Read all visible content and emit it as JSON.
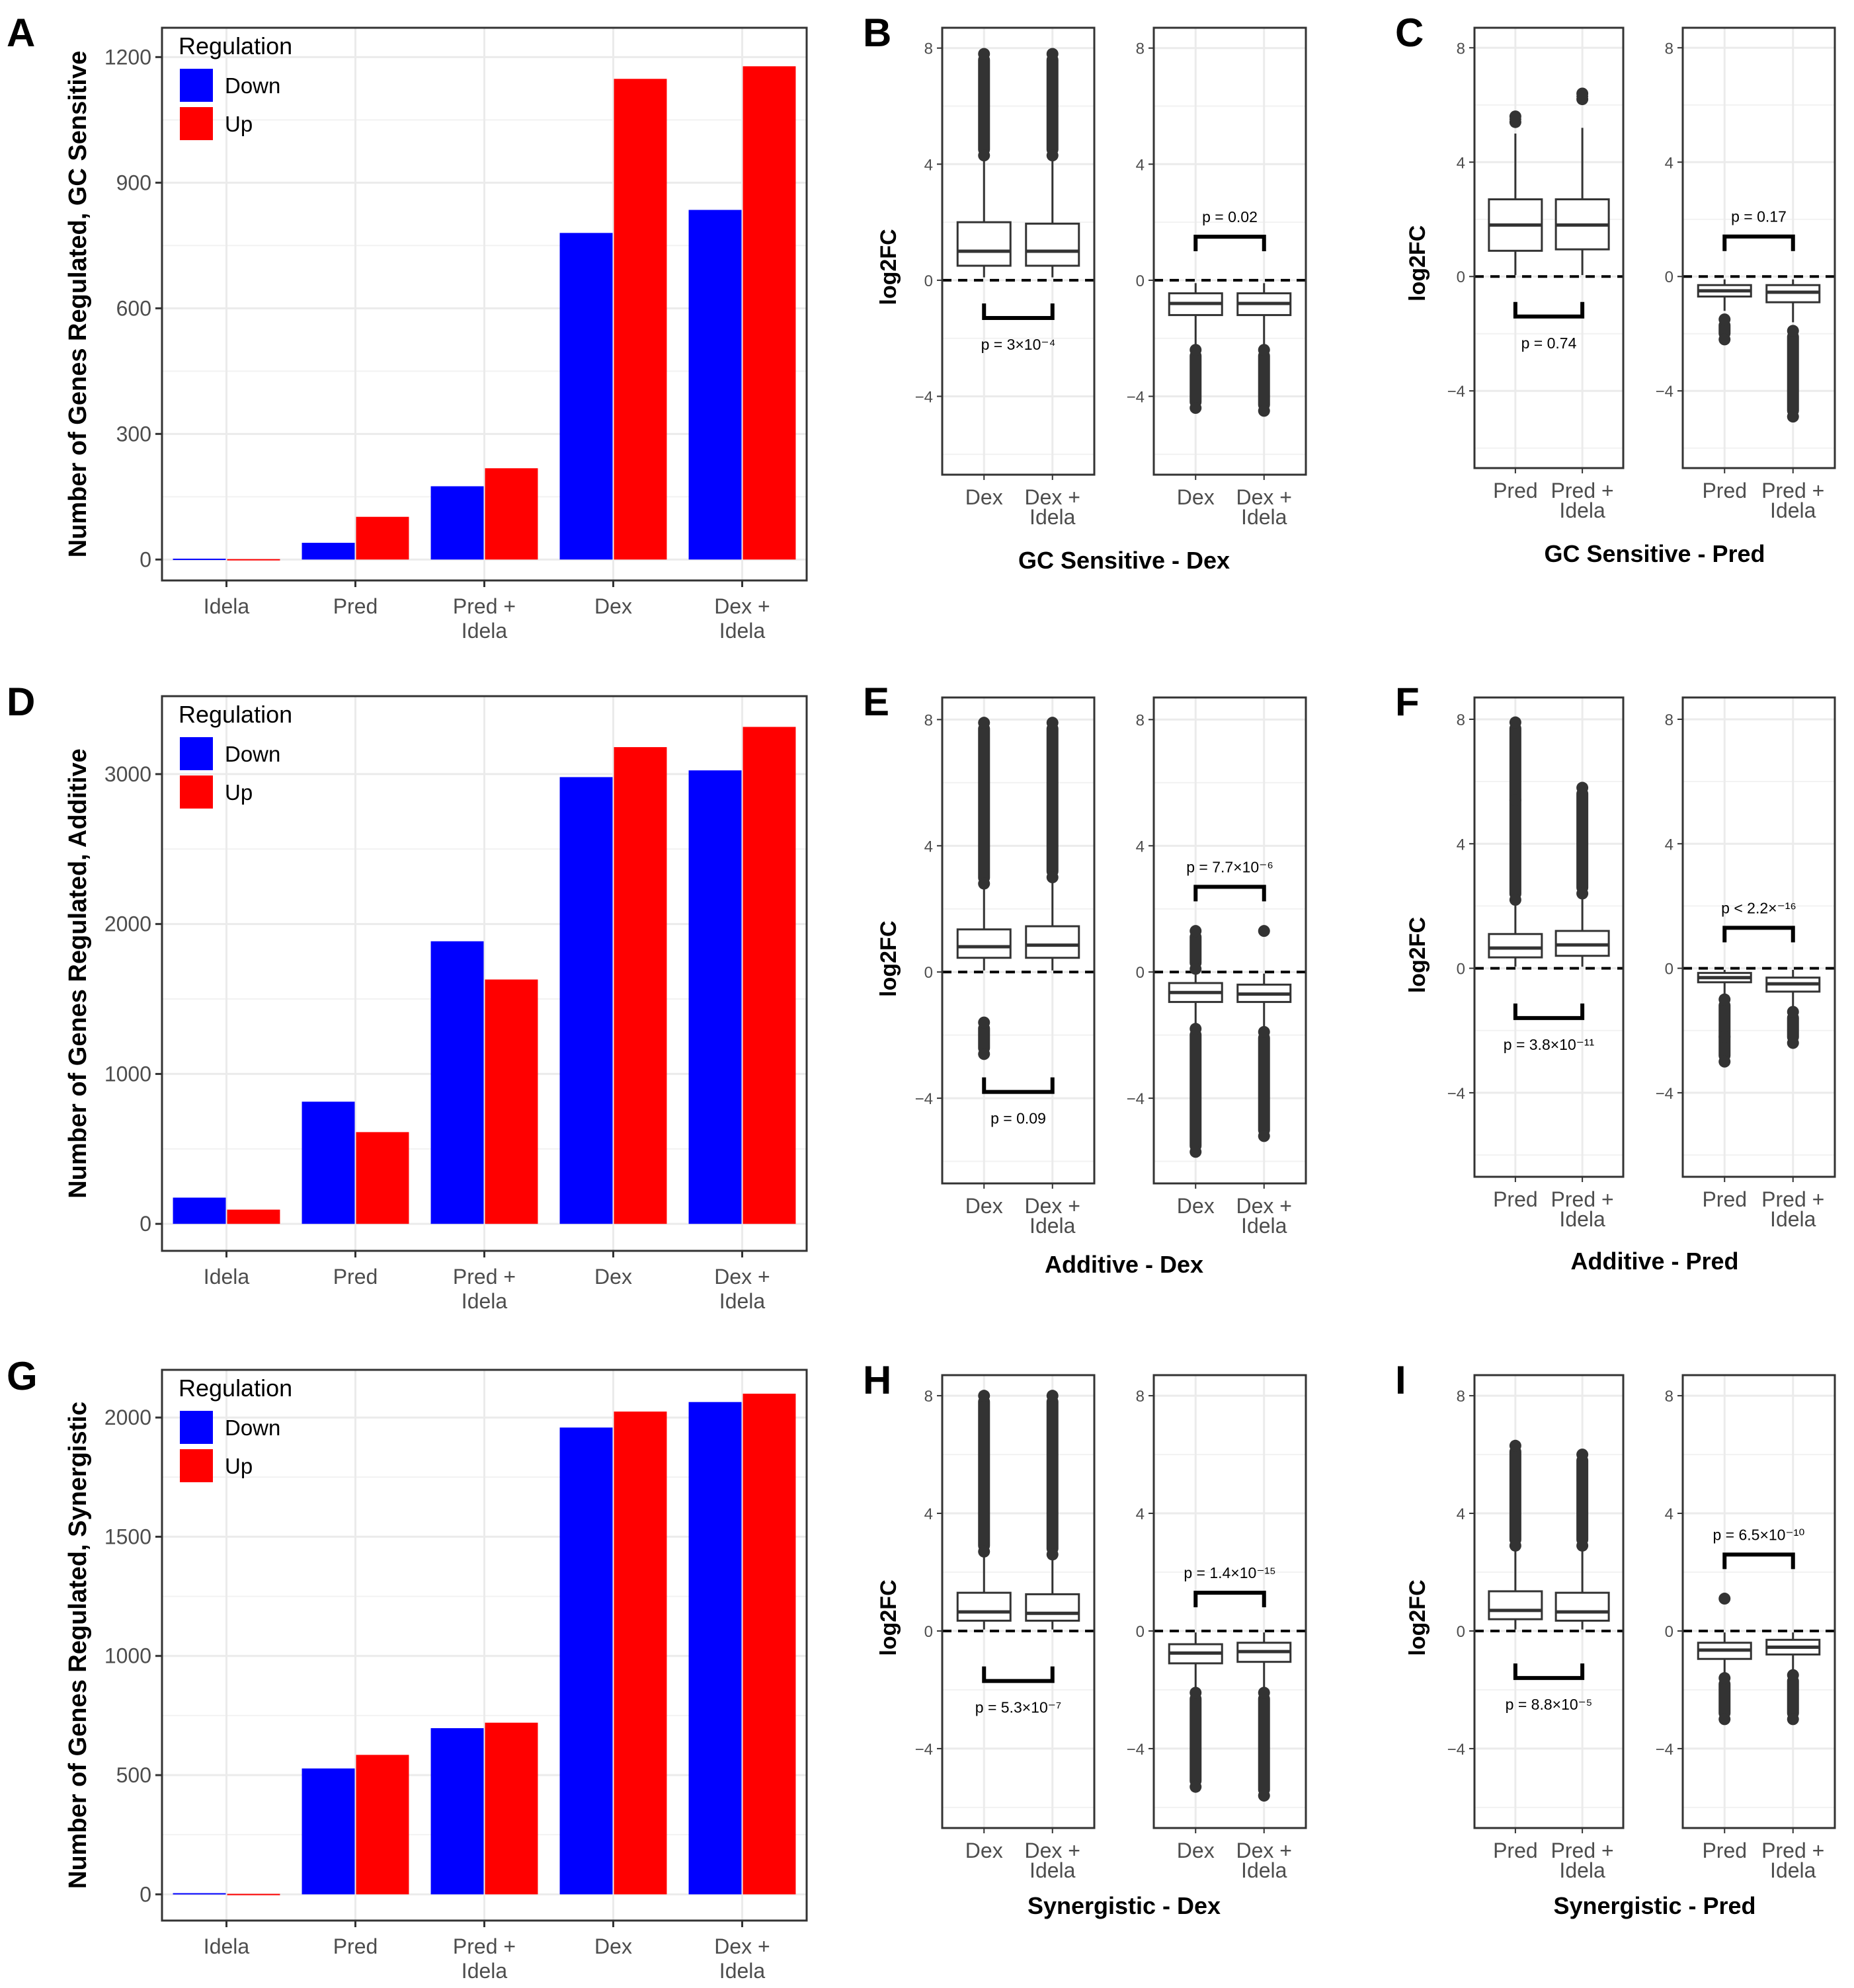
{
  "panel_letters": [
    "A",
    "B",
    "C",
    "D",
    "E",
    "F",
    "G",
    "H",
    "I"
  ],
  "colors": {
    "down": "#0000FF",
    "up": "#FF0000",
    "box_fill": "#FFFFFF",
    "outline": "#333333",
    "grid": "#EBEBEB"
  },
  "chart_data": [
    {
      "panel": "A",
      "type": "bar",
      "ylabel": "Number of Genes Regulated, GC Sensitive",
      "xlabel": "",
      "categories": [
        "Idela",
        "Pred",
        "Pred +\nIdela",
        "Dex",
        "Dex +\nIdela"
      ],
      "series": [
        {
          "name": "Down",
          "values": [
            2,
            40,
            175,
            780,
            835
          ]
        },
        {
          "name": "Up",
          "values": [
            1,
            102,
            218,
            1148,
            1178
          ]
        }
      ],
      "ylim": [
        -50,
        1270
      ],
      "yticks": [
        0,
        300,
        600,
        900,
        1200
      ],
      "legend": {
        "title": "Regulation",
        "entries": [
          "Down",
          "Up"
        ],
        "position": "top-left"
      },
      "grid": true
    },
    {
      "panel": "D",
      "type": "bar",
      "ylabel": "Number of Genes Regulated, Additive",
      "xlabel": "",
      "categories": [
        "Idela",
        "Pred",
        "Pred +\nIdela",
        "Dex",
        "Dex +\nIdela"
      ],
      "series": [
        {
          "name": "Down",
          "values": [
            175,
            815,
            1885,
            2980,
            3025
          ]
        },
        {
          "name": "Up",
          "values": [
            95,
            612,
            1630,
            3180,
            3315
          ]
        }
      ],
      "ylim": [
        -180,
        3520
      ],
      "yticks": [
        0,
        1000,
        2000,
        3000
      ],
      "legend": {
        "title": "Regulation",
        "entries": [
          "Down",
          "Up"
        ],
        "position": "top-left"
      },
      "grid": true
    },
    {
      "panel": "G",
      "type": "bar",
      "ylabel": "Number of Genes Regulated, Synergistic",
      "xlabel": "",
      "categories": [
        "Idela",
        "Pred",
        "Pred +\nIdela",
        "Dex",
        "Dex +\nIdela"
      ],
      "series": [
        {
          "name": "Down",
          "values": [
            5,
            528,
            697,
            1958,
            2065
          ]
        },
        {
          "name": "Up",
          "values": [
            2,
            585,
            720,
            2025,
            2100
          ]
        }
      ],
      "ylim": [
        -110,
        2200
      ],
      "yticks": [
        0,
        500,
        1000,
        1500,
        2000
      ],
      "legend": {
        "title": "Regulation",
        "entries": [
          "Down",
          "Up"
        ],
        "position": "top-left"
      },
      "grid": true
    },
    {
      "panel": "B",
      "type": "box",
      "xlabel": "GC Sensitive - Dex",
      "ylabel": "log2FC",
      "ylim": [
        -6.7,
        8.7
      ],
      "yticks": [
        -4,
        0,
        4,
        8
      ],
      "facets": [
        {
          "categories": [
            "Dex",
            "Dex +\nIdela"
          ],
          "boxes": [
            {
              "q1": 0.5,
              "median": 1.0,
              "q3": 2.0,
              "wlow": 0.1,
              "whigh": 4.2,
              "outliers_low": [],
              "outliers_high": [
                4.3,
                7.8
              ]
            },
            {
              "q1": 0.5,
              "median": 1.0,
              "q3": 1.95,
              "wlow": 0.1,
              "whigh": 4.2,
              "outliers_low": [],
              "outliers_high": [
                4.3,
                7.8
              ]
            }
          ],
          "pvalue": "p = 3×10⁻⁴",
          "bracket_y": -1.3,
          "bracket_dir": "down"
        },
        {
          "categories": [
            "Dex",
            "Dex +\nIdela"
          ],
          "boxes": [
            {
              "q1": -1.2,
              "median": -0.8,
              "q3": -0.45,
              "wlow": -2.3,
              "whigh": -0.1,
              "outliers_low": [
                -2.4,
                -4.4
              ],
              "outliers_high": []
            },
            {
              "q1": -1.2,
              "median": -0.8,
              "q3": -0.45,
              "wlow": -2.3,
              "whigh": -0.1,
              "outliers_low": [
                -2.4,
                -4.5
              ],
              "outliers_high": []
            }
          ],
          "pvalue": "p = 0.02",
          "bracket_y": 1.5,
          "bracket_dir": "up"
        }
      ]
    },
    {
      "panel": "C",
      "type": "box",
      "xlabel": "GC Sensitive - Pred",
      "ylabel": "log2FC",
      "ylim": [
        -6.7,
        8.7
      ],
      "yticks": [
        -4,
        0,
        4,
        8
      ],
      "facets": [
        {
          "categories": [
            "Pred",
            "Pred +\nIdela"
          ],
          "boxes": [
            {
              "q1": 0.9,
              "median": 1.8,
              "q3": 2.7,
              "wlow": 0.05,
              "whigh": 5.0,
              "outliers_low": [],
              "outliers_high": [
                5.4,
                5.6
              ]
            },
            {
              "q1": 0.95,
              "median": 1.8,
              "q3": 2.7,
              "wlow": 0.05,
              "whigh": 5.2,
              "outliers_low": [],
              "outliers_high": [
                6.2,
                6.4
              ]
            }
          ],
          "pvalue": "p = 0.74",
          "bracket_y": -1.4,
          "bracket_dir": "down"
        },
        {
          "categories": [
            "Pred",
            "Pred +\nIdela"
          ],
          "boxes": [
            {
              "q1": -0.7,
              "median": -0.5,
              "q3": -0.3,
              "wlow": -1.2,
              "whigh": -0.1,
              "outliers_low": [
                -1.5,
                -2.2
              ],
              "outliers_high": []
            },
            {
              "q1": -0.9,
              "median": -0.55,
              "q3": -0.3,
              "wlow": -1.6,
              "whigh": -0.1,
              "outliers_low": [
                -1.9,
                -4.9
              ],
              "outliers_high": []
            }
          ],
          "pvalue": "p = 0.17",
          "bracket_y": 1.4,
          "bracket_dir": "up"
        }
      ]
    },
    {
      "panel": "E",
      "type": "box",
      "xlabel": "Additive - Dex",
      "ylabel": "log2FC",
      "ylim": [
        -6.7,
        8.7
      ],
      "yticks": [
        -4,
        0,
        4,
        8
      ],
      "facets": [
        {
          "categories": [
            "Dex",
            "Dex +\nIdela"
          ],
          "boxes": [
            {
              "q1": 0.45,
              "median": 0.8,
              "q3": 1.35,
              "wlow": 0.05,
              "whigh": 2.7,
              "outliers_low": [
                -1.6,
                -2.6
              ],
              "outliers_high": [
                2.8,
                7.9
              ]
            },
            {
              "q1": 0.45,
              "median": 0.85,
              "q3": 1.45,
              "wlow": 0.05,
              "whigh": 2.9,
              "outliers_low": [],
              "outliers_high": [
                3.0,
                7.9
              ]
            }
          ],
          "pvalue": "p = 0.09",
          "bracket_y": -3.8,
          "bracket_dir": "down"
        },
        {
          "categories": [
            "Dex",
            "Dex +\nIdela"
          ],
          "boxes": [
            {
              "q1": -0.95,
              "median": -0.65,
              "q3": -0.35,
              "wlow": -1.7,
              "whigh": -0.05,
              "outliers_low": [
                -1.8,
                -5.7
              ],
              "outliers_high": [
                0.1,
                1.3
              ]
            },
            {
              "q1": -0.95,
              "median": -0.7,
              "q3": -0.4,
              "wlow": -1.8,
              "whigh": -0.05,
              "outliers_low": [
                -1.9,
                -5.2
              ],
              "outliers_high": [
                1.3
              ]
            }
          ],
          "pvalue": "p = 7.7×10⁻⁶",
          "bracket_y": 2.7,
          "bracket_dir": "up"
        }
      ]
    },
    {
      "panel": "F",
      "type": "box",
      "xlabel": "Additive - Pred",
      "ylabel": "log2FC",
      "ylim": [
        -6.7,
        8.7
      ],
      "yticks": [
        -4,
        0,
        4,
        8
      ],
      "facets": [
        {
          "categories": [
            "Pred",
            "Pred +\nIdela"
          ],
          "boxes": [
            {
              "q1": 0.35,
              "median": 0.65,
              "q3": 1.1,
              "wlow": 0.05,
              "whigh": 2.1,
              "outliers_low": [],
              "outliers_high": [
                2.2,
                5.4,
                7.9
              ]
            },
            {
              "q1": 0.4,
              "median": 0.75,
              "q3": 1.2,
              "wlow": 0.05,
              "whigh": 2.3,
              "outliers_low": [],
              "outliers_high": [
                2.4,
                5.8
              ]
            }
          ],
          "pvalue": "p = 3.8×10⁻¹¹",
          "bracket_y": -1.6,
          "bracket_dir": "down"
        },
        {
          "categories": [
            "Pred",
            "Pred +\nIdela"
          ],
          "boxes": [
            {
              "q1": -0.45,
              "median": -0.3,
              "q3": -0.15,
              "wlow": -0.9,
              "whigh": -0.05,
              "outliers_low": [
                -1.0,
                -2.2,
                -3.0
              ],
              "outliers_high": []
            },
            {
              "q1": -0.75,
              "median": -0.5,
              "q3": -0.3,
              "wlow": -1.3,
              "whigh": -0.05,
              "outliers_low": [
                -1.4,
                -2.4
              ],
              "outliers_high": []
            }
          ],
          "pvalue": "p < 2.2×⁻¹⁶",
          "bracket_y": 1.3,
          "bracket_dir": "up"
        }
      ]
    },
    {
      "panel": "H",
      "type": "box",
      "xlabel": "Synergistic - Dex",
      "ylabel": "log2FC",
      "ylim": [
        -6.7,
        8.7
      ],
      "yticks": [
        -4,
        0,
        4,
        8
      ],
      "facets": [
        {
          "categories": [
            "Dex",
            "Dex +\nIdela"
          ],
          "boxes": [
            {
              "q1": 0.35,
              "median": 0.65,
              "q3": 1.3,
              "wlow": 0.05,
              "whigh": 2.6,
              "outliers_low": [],
              "outliers_high": [
                2.7,
                8.0
              ]
            },
            {
              "q1": 0.35,
              "median": 0.6,
              "q3": 1.25,
              "wlow": 0.05,
              "whigh": 2.5,
              "outliers_low": [],
              "outliers_high": [
                2.6,
                8.0
              ]
            }
          ],
          "pvalue": "p = 5.3×10⁻⁷",
          "bracket_y": -1.7,
          "bracket_dir": "down"
        },
        {
          "categories": [
            "Dex",
            "Dex +\nIdela"
          ],
          "boxes": [
            {
              "q1": -1.1,
              "median": -0.75,
              "q3": -0.45,
              "wlow": -2.0,
              "whigh": -0.05,
              "outliers_low": [
                -2.1,
                -5.3
              ],
              "outliers_high": []
            },
            {
              "q1": -1.05,
              "median": -0.7,
              "q3": -0.4,
              "wlow": -2.0,
              "whigh": -0.05,
              "outliers_low": [
                -2.1,
                -5.6
              ],
              "outliers_high": []
            }
          ],
          "pvalue": "p = 1.4×10⁻¹⁵",
          "bracket_y": 1.3,
          "bracket_dir": "up"
        }
      ]
    },
    {
      "panel": "I",
      "type": "box",
      "xlabel": "Synergistic - Pred",
      "ylabel": "log2FC",
      "ylim": [
        -6.7,
        8.7
      ],
      "yticks": [
        -4,
        0,
        4,
        8
      ],
      "facets": [
        {
          "categories": [
            "Pred",
            "Pred +\nIdela"
          ],
          "boxes": [
            {
              "q1": 0.4,
              "median": 0.7,
              "q3": 1.35,
              "wlow": 0.05,
              "whigh": 2.8,
              "outliers_low": [],
              "outliers_high": [
                2.9,
                6.3
              ]
            },
            {
              "q1": 0.35,
              "median": 0.65,
              "q3": 1.3,
              "wlow": 0.05,
              "whigh": 2.8,
              "outliers_low": [],
              "outliers_high": [
                2.9,
                6.0
              ]
            }
          ],
          "pvalue": "p = 8.8×10⁻⁵",
          "bracket_y": -1.6,
          "bracket_dir": "down"
        },
        {
          "categories": [
            "Pred",
            "Pred +\nIdela"
          ],
          "boxes": [
            {
              "q1": -0.95,
              "median": -0.65,
              "q3": -0.4,
              "wlow": -1.5,
              "whigh": -0.05,
              "outliers_low": [
                -1.6,
                -3.0
              ],
              "outliers_high": [
                1.1
              ]
            },
            {
              "q1": -0.8,
              "median": -0.55,
              "q3": -0.3,
              "wlow": -1.4,
              "whigh": -0.05,
              "outliers_low": [
                -1.5,
                -3.0
              ],
              "outliers_high": []
            }
          ],
          "pvalue": "p = 6.5×10⁻¹⁰",
          "bracket_y": 2.6,
          "bracket_dir": "up"
        }
      ]
    }
  ]
}
